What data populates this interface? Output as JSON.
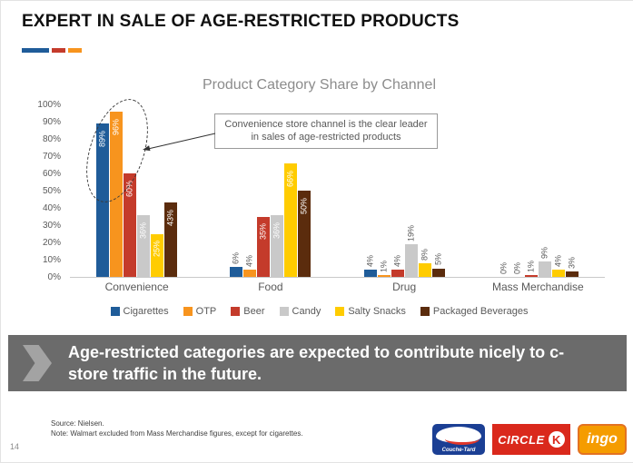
{
  "slide": {
    "title": "EXPERT IN SALE OF AGE-RESTRICTED PRODUCTS",
    "page_number": "14"
  },
  "accents": {
    "blue": "#1f5c99",
    "red": "#c43b2b",
    "orange": "#f7941e"
  },
  "chart_data": {
    "type": "bar",
    "title": "Product Category Share by Channel",
    "categories": [
      "Convenience",
      "Food",
      "Drug",
      "Mass Merchandise"
    ],
    "series": [
      {
        "name": "Cigarettes",
        "color": "#1f5c99",
        "values": [
          89,
          6,
          4,
          0
        ]
      },
      {
        "name": "OTP",
        "color": "#f7941e",
        "values": [
          96,
          4,
          1,
          0
        ]
      },
      {
        "name": "Beer",
        "color": "#c43b2b",
        "values": [
          60,
          35,
          4,
          1
        ]
      },
      {
        "name": "Candy",
        "color": "#c9c9c9",
        "values": [
          36,
          36,
          19,
          9
        ]
      },
      {
        "name": "Salty Snacks",
        "color": "#ffcc00",
        "values": [
          25,
          66,
          8,
          4
        ]
      },
      {
        "name": "Packaged Beverages",
        "color": "#5b2c0d",
        "values": [
          43,
          50,
          5,
          3
        ]
      }
    ],
    "ylim": [
      0,
      100
    ],
    "yticks": [
      "0%",
      "10%",
      "20%",
      "30%",
      "40%",
      "50%",
      "60%",
      "70%",
      "80%",
      "90%",
      "100%"
    ],
    "grid": false,
    "legend_position": "bottom",
    "value_suffix": "%",
    "annotation": "Convenience store channel is the clear leader in sales of age-restricted products"
  },
  "takeaway": {
    "text": "Age-restricted categories are expected to contribute nicely to c-store traffic in the future."
  },
  "footer": {
    "source": "Source: Nielsen.",
    "note": "Note: Walmart excluded from Mass Merchandise figures, except for cigarettes.",
    "logos": {
      "couche_tard": "Couche-Tard",
      "circle_k_word": "CIRCLE",
      "circle_k_letter": "K",
      "ingo": "ingo"
    }
  }
}
